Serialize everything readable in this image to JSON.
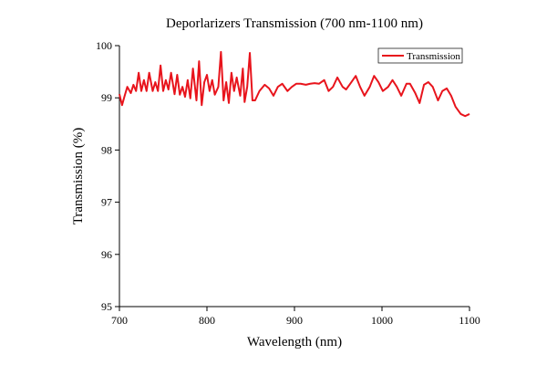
{
  "chart_data": {
    "type": "line",
    "title": "Deporlarizers Transmission (700 nm-1100 nm)",
    "x_label": "Wavelength (nm)",
    "y_label": "Transmission (%)",
    "x": [
      700,
      703,
      706,
      709,
      713,
      716,
      719,
      722,
      725,
      728,
      731,
      734,
      738,
      741,
      744,
      747,
      750,
      753,
      756,
      759,
      763,
      766,
      769,
      772,
      775,
      778,
      781,
      784,
      788,
      791,
      794,
      797,
      800,
      803,
      806,
      809,
      813,
      816,
      819,
      822,
      825,
      828,
      831,
      834,
      838,
      841,
      843,
      846,
      849,
      852,
      855,
      860,
      866,
      871,
      876,
      881,
      886,
      892,
      897,
      902,
      907,
      913,
      918,
      923,
      928,
      934,
      939,
      944,
      949,
      955,
      959,
      965,
      970,
      975,
      980,
      986,
      991,
      996,
      1001,
      1007,
      1012,
      1017,
      1022,
      1028,
      1032,
      1038,
      1043,
      1048,
      1053,
      1058,
      1064,
      1069,
      1074,
      1079,
      1084,
      1090,
      1095,
      1100
    ],
    "series": [
      {
        "name": "Transmission",
        "color": "#e8141c",
        "values": [
          99.07,
          98.86,
          99.04,
          99.21,
          99.09,
          99.25,
          99.13,
          99.48,
          99.13,
          99.34,
          99.13,
          99.48,
          99.13,
          99.3,
          99.13,
          99.62,
          99.13,
          99.34,
          99.16,
          99.48,
          99.07,
          99.44,
          99.06,
          99.21,
          99.02,
          99.34,
          98.99,
          99.56,
          98.95,
          99.7,
          98.86,
          99.3,
          99.44,
          99.13,
          99.34,
          99.06,
          99.21,
          99.88,
          98.95,
          99.3,
          98.9,
          99.48,
          99.13,
          99.39,
          99.04,
          99.56,
          98.92,
          99.21,
          99.86,
          98.95,
          98.95,
          99.13,
          99.25,
          99.18,
          99.04,
          99.21,
          99.27,
          99.13,
          99.21,
          99.27,
          99.27,
          99.25,
          99.27,
          99.28,
          99.27,
          99.34,
          99.13,
          99.21,
          99.39,
          99.21,
          99.16,
          99.3,
          99.42,
          99.21,
          99.04,
          99.21,
          99.42,
          99.3,
          99.13,
          99.21,
          99.34,
          99.21,
          99.04,
          99.27,
          99.27,
          99.09,
          98.9,
          99.25,
          99.3,
          99.21,
          98.95,
          99.13,
          99.18,
          99.04,
          98.83,
          98.69,
          98.65,
          98.69
        ]
      }
    ],
    "xlim": [
      700,
      1100
    ],
    "xticks": [
      700,
      800,
      900,
      1000,
      1100
    ],
    "ylim": [
      95,
      100
    ],
    "yticks": [
      95,
      96,
      97,
      98,
      99,
      100
    ],
    "legend": "upper right"
  }
}
